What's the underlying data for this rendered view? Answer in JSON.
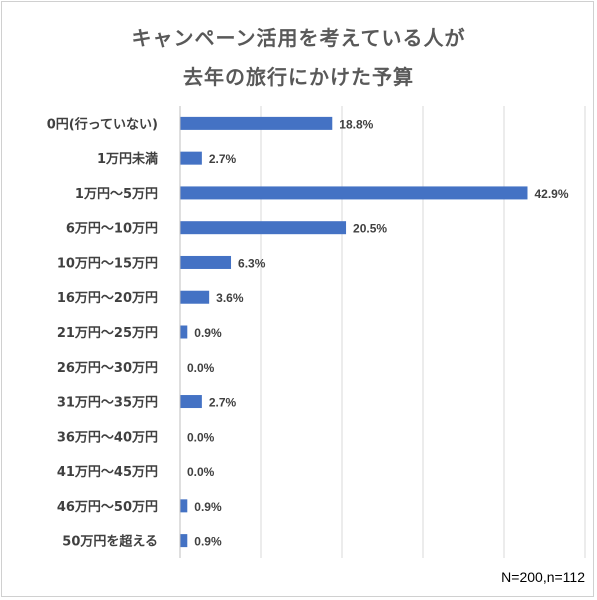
{
  "chart_data": {
    "type": "bar",
    "orientation": "horizontal",
    "title": [
      "キャンペーン活用を考えている人が",
      "去年の旅行にかけた予算"
    ],
    "categories": [
      "0円(行っていない)",
      "1万円未満",
      "1万円〜5万円",
      "6万円〜10万円",
      "10万円〜15万円",
      "16万円〜20万円",
      "21万円〜25万円",
      "26万円〜30万円",
      "31万円〜35万円",
      "36万円〜40万円",
      "41万円〜45万円",
      "46万円〜50万円",
      "50万円を超える"
    ],
    "values": [
      18.8,
      2.7,
      42.9,
      20.5,
      6.3,
      3.6,
      0.9,
      0.0,
      2.7,
      0.0,
      0.0,
      0.9,
      0.9
    ],
    "value_labels": [
      "18.8%",
      "2.7%",
      "42.9%",
      "20.5%",
      "6.3%",
      "3.6%",
      "0.9%",
      "0.0%",
      "2.7%",
      "0.0%",
      "0.0%",
      "0.9%",
      "0.9%"
    ],
    "unit": "%",
    "xlim": [
      0,
      50
    ],
    "grid": true,
    "legend": "none",
    "bar_color": "#4472c4",
    "note": "N=200,n=112"
  }
}
